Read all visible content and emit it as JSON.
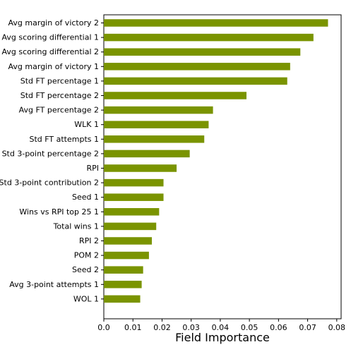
{
  "chart_data": {
    "type": "bar",
    "orientation": "horizontal",
    "title": "",
    "xlabel": "Field Importance",
    "ylabel": "",
    "xlim": [
      0,
      0.0815
    ],
    "xticks": [
      0.0,
      0.01,
      0.02,
      0.03,
      0.04,
      0.05,
      0.06,
      0.07,
      0.08
    ],
    "xtick_labels": [
      "0.0",
      "0.01",
      "0.02",
      "0.03",
      "0.04",
      "0.05",
      "0.06",
      "0.07",
      "0.08"
    ],
    "bar_color": "#7a9400",
    "grid": false,
    "categories": [
      "Avg margin of victory 2",
      "Avg scoring differential 1",
      "Avg scoring differential 2",
      "Avg margin of victory 1",
      "Std FT percentage 1",
      "Std FT percentage 2",
      "Avg FT percentage 2",
      "WLK 1",
      "Std FT attempts 1",
      "Std 3-point percentage 2",
      "RPI",
      "Std 3-point contribution 2",
      "Seed 1",
      "Wins vs RPI top 25 1",
      "Total wins 1",
      "RPI 2",
      "POM 2",
      "Seed 2",
      "Avg 3-point attempts 1",
      "WOL 1"
    ],
    "values": [
      0.077,
      0.072,
      0.0675,
      0.064,
      0.063,
      0.049,
      0.0375,
      0.036,
      0.0345,
      0.0295,
      0.025,
      0.0205,
      0.0205,
      0.019,
      0.018,
      0.0165,
      0.0155,
      0.0135,
      0.013,
      0.0125
    ]
  }
}
